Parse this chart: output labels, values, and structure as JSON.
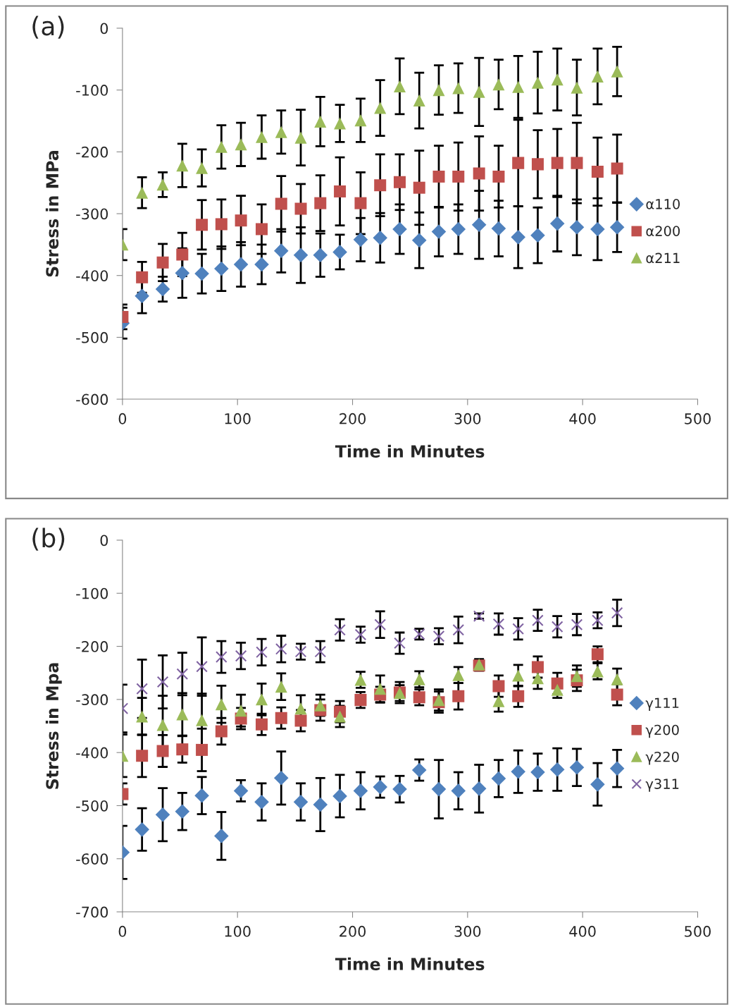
{
  "chart_data": [
    {
      "type": "scatter",
      "annotations": [
        "(a)"
      ],
      "xlabel": "Time in Minutes",
      "ylabel": "Stress in MPa",
      "xlim": [
        0,
        500
      ],
      "xticks": [
        0,
        100,
        200,
        300,
        400,
        500
      ],
      "ylim": [
        -600,
        0
      ],
      "yticks": [
        -600,
        -500,
        -400,
        -300,
        -200,
        -100,
        0
      ],
      "grid": false,
      "legend": "right",
      "x": [
        0,
        17,
        35,
        52,
        69,
        86,
        103,
        121,
        138,
        155,
        172,
        189,
        207,
        224,
        241,
        258,
        275,
        292,
        310,
        327,
        344,
        361,
        378,
        395,
        413,
        430
      ],
      "series": [
        {
          "name": "α110",
          "color": "#4f81bd",
          "marker": "diamond",
          "values": [
            -477,
            -433,
            -422,
            -396,
            -397,
            -389,
            -382,
            -382,
            -360,
            -367,
            -367,
            -362,
            -342,
            -339,
            -325,
            -343,
            -329,
            -325,
            -318,
            -324,
            -338,
            -335,
            -316,
            -322,
            -325,
            -322
          ],
          "errors": [
            25,
            28,
            20,
            40,
            32,
            36,
            36,
            32,
            35,
            45,
            35,
            28,
            35,
            40,
            40,
            45,
            40,
            40,
            55,
            45,
            50,
            45,
            45,
            45,
            50,
            40
          ]
        },
        {
          "name": "α200",
          "color": "#c0504d",
          "marker": "square",
          "values": [
            -467,
            -403,
            -379,
            -366,
            -318,
            -317,
            -311,
            -325,
            -284,
            -292,
            -283,
            -264,
            -283,
            -254,
            -249,
            -258,
            -240,
            -240,
            -235,
            -240,
            -218,
            -220,
            -218,
            -218,
            -232,
            -227
          ],
          "errors": [
            20,
            25,
            30,
            35,
            40,
            40,
            40,
            40,
            45,
            40,
            45,
            55,
            50,
            50,
            45,
            60,
            50,
            55,
            60,
            50,
            70,
            55,
            55,
            65,
            55,
            55
          ]
        },
        {
          "name": "α211",
          "color": "#9bbb59",
          "marker": "triangle",
          "values": [
            -350,
            -266,
            -253,
            -222,
            -226,
            -192,
            -188,
            -176,
            -168,
            -177,
            -151,
            -154,
            -149,
            -129,
            -94,
            -117,
            -100,
            -97,
            -103,
            -91,
            -95,
            -88,
            -83,
            -96,
            -78,
            -70
          ],
          "errors": [
            25,
            25,
            20,
            35,
            30,
            35,
            35,
            35,
            35,
            45,
            40,
            30,
            35,
            45,
            45,
            45,
            40,
            40,
            55,
            40,
            50,
            50,
            50,
            45,
            45,
            40
          ]
        }
      ]
    },
    {
      "type": "scatter",
      "annotations": [
        "(b)"
      ],
      "xlabel": "Time in Minutes",
      "ylabel": "Stress in Mpa",
      "xlim": [
        0,
        500
      ],
      "xticks": [
        0,
        100,
        200,
        300,
        400,
        500
      ],
      "ylim": [
        -700,
        0
      ],
      "yticks": [
        -700,
        -600,
        -500,
        -400,
        -300,
        -200,
        -100,
        0
      ],
      "grid": false,
      "legend": "right",
      "x": [
        0,
        17,
        35,
        52,
        69,
        86,
        103,
        121,
        138,
        155,
        172,
        189,
        207,
        224,
        241,
        258,
        275,
        292,
        310,
        327,
        344,
        361,
        378,
        395,
        413,
        430
      ],
      "series": [
        {
          "name": "γ111",
          "color": "#4f81bd",
          "marker": "diamond",
          "values": [
            -588,
            -545,
            -517,
            -511,
            -481,
            -557,
            -472,
            -493,
            -448,
            -493,
            -498,
            -482,
            -472,
            -465,
            -469,
            -433,
            -469,
            -472,
            -468,
            -449,
            -436,
            -437,
            -432,
            -428,
            -460,
            -430
          ],
          "errors": [
            50,
            40,
            50,
            35,
            35,
            45,
            20,
            35,
            50,
            35,
            50,
            40,
            35,
            20,
            25,
            20,
            55,
            35,
            45,
            35,
            40,
            35,
            40,
            35,
            40,
            35
          ]
        },
        {
          "name": "γ200",
          "color": "#c0504d",
          "marker": "square",
          "values": [
            -478,
            -406,
            -397,
            -394,
            -395,
            -360,
            -336,
            -347,
            -335,
            -340,
            -320,
            -323,
            -301,
            -291,
            -287,
            -296,
            -305,
            -294,
            -236,
            -275,
            -294,
            -239,
            -270,
            -264,
            -215,
            -291
          ],
          "errors": [
            20,
            40,
            30,
            25,
            40,
            25,
            20,
            20,
            20,
            20,
            20,
            20,
            15,
            15,
            20,
            15,
            20,
            25,
            10,
            20,
            20,
            20,
            20,
            20,
            15,
            20
          ]
        },
        {
          "name": "γ220",
          "color": "#9bbb59",
          "marker": "triangle",
          "values": [
            -406,
            -332,
            -348,
            -328,
            -339,
            -309,
            -321,
            -300,
            -276,
            -317,
            -311,
            -332,
            -263,
            -280,
            -288,
            -262,
            -301,
            -254,
            -234,
            -303,
            -255,
            -260,
            -282,
            -256,
            -247,
            -262
          ],
          "errors": [
            40,
            35,
            55,
            40,
            50,
            35,
            30,
            30,
            25,
            25,
            20,
            20,
            15,
            25,
            15,
            15,
            20,
            15,
            10,
            20,
            20,
            20,
            15,
            20,
            15,
            20
          ]
        },
        {
          "name": "γ311",
          "color": "#8064a2",
          "marker": "cross",
          "values": [
            -317,
            -280,
            -267,
            -252,
            -238,
            -220,
            -218,
            -211,
            -205,
            -210,
            -210,
            -169,
            -178,
            -159,
            -194,
            -177,
            -181,
            -169,
            -143,
            -158,
            -167,
            -151,
            -163,
            -159,
            -151,
            -137
          ],
          "errors": [
            45,
            55,
            50,
            40,
            55,
            30,
            25,
            25,
            25,
            15,
            20,
            20,
            15,
            25,
            20,
            10,
            15,
            25,
            5,
            20,
            20,
            20,
            20,
            20,
            15,
            25
          ]
        }
      ]
    }
  ]
}
